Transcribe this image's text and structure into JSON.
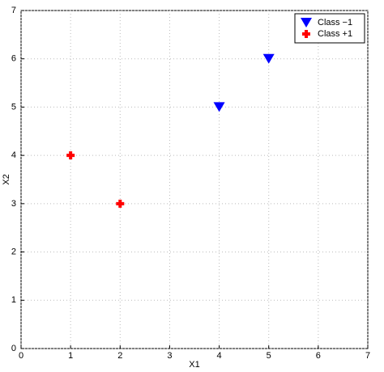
{
  "chart_data": {
    "type": "scatter",
    "xlabel": "X1",
    "ylabel": "X2",
    "series": [
      {
        "name": "Class −1",
        "color": "#0000ff",
        "marker": "triangle-down",
        "x": [
          4,
          5
        ],
        "values": [
          5,
          6
        ]
      },
      {
        "name": "Class +1",
        "color": "#ff0000",
        "marker": "plus",
        "x": [
          1,
          2
        ],
        "values": [
          4,
          3
        ]
      }
    ],
    "xlim": [
      0,
      7
    ],
    "ylim": [
      0,
      7
    ],
    "xticks": [
      0,
      1,
      2,
      3,
      4,
      5,
      6,
      7
    ],
    "yticks": [
      0,
      1,
      2,
      3,
      4,
      5,
      6,
      7
    ],
    "grid": true,
    "legend": "upper right"
  }
}
